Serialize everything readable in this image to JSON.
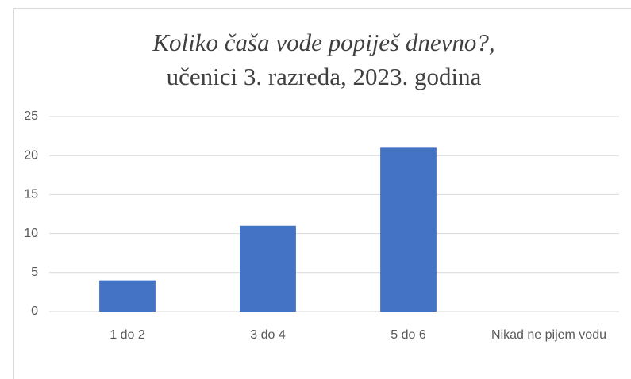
{
  "chart_data": {
    "type": "bar",
    "title": "Koliko čaša vode popiješ dnevno?,",
    "subtitle": "učenici 3. razreda, 2023. godina",
    "categories": [
      "1 do 2",
      "3 do 4",
      "5 do 6",
      "Nikad ne pijem vodu"
    ],
    "values": [
      4,
      11,
      21,
      0
    ],
    "color": "#4472c4",
    "ylim": [
      0,
      25
    ],
    "yticks": [
      0,
      5,
      10,
      15,
      20,
      25
    ],
    "grid": true
  }
}
